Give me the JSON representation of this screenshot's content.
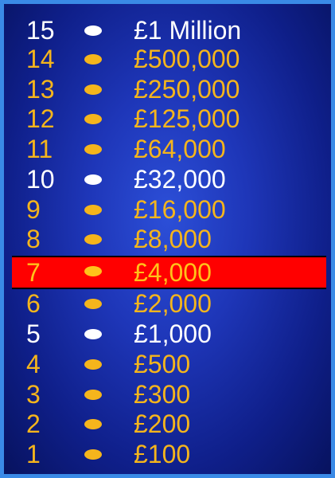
{
  "ladder": {
    "current_level": "7",
    "levels": [
      {
        "number": "15",
        "amount": "£1 Million",
        "milestone": true
      },
      {
        "number": "14",
        "amount": "£500,000",
        "milestone": false
      },
      {
        "number": "13",
        "amount": "£250,000",
        "milestone": false
      },
      {
        "number": "12",
        "amount": "£125,000",
        "milestone": false
      },
      {
        "number": "11",
        "amount": "£64,000",
        "milestone": false
      },
      {
        "number": "10",
        "amount": "£32,000",
        "milestone": true
      },
      {
        "number": "9",
        "amount": "£16,000",
        "milestone": false
      },
      {
        "number": "8",
        "amount": "£8,000",
        "milestone": false
      },
      {
        "number": "7",
        "amount": "£4,000",
        "milestone": false
      },
      {
        "number": "6",
        "amount": "£2,000",
        "milestone": false
      },
      {
        "number": "5",
        "amount": "£1,000",
        "milestone": true
      },
      {
        "number": "4",
        "amount": "£500",
        "milestone": false
      },
      {
        "number": "3",
        "amount": "£300",
        "milestone": false
      },
      {
        "number": "2",
        "amount": "£200",
        "milestone": false
      },
      {
        "number": "1",
        "amount": "£100",
        "milestone": false
      }
    ]
  },
  "colors": {
    "milestone_text": "#ffffff",
    "normal_text": "#f5b51c",
    "highlight_bar": "#ff0000",
    "border": "#3a8ae6"
  }
}
